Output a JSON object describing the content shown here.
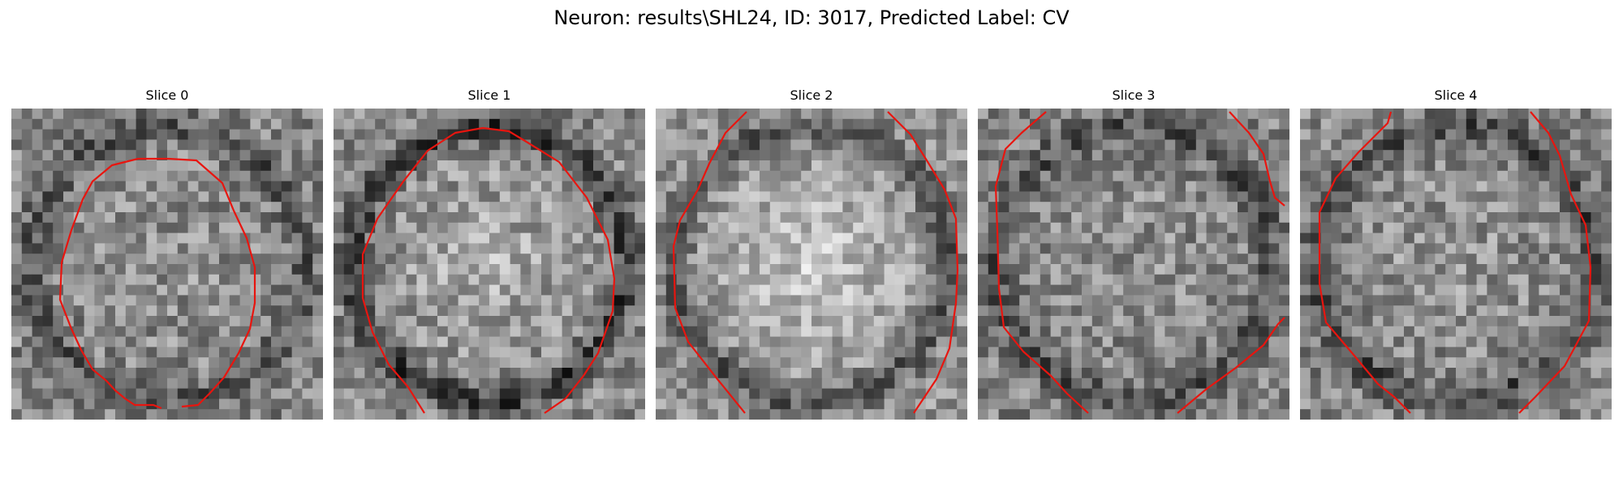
{
  "figure": {
    "title": "Neuron: results\\SHL24, ID: 3017, Predicted Label: CV"
  },
  "panels": [
    {
      "title": "Slice 0",
      "mean_brightness": 0.52,
      "contrast": 0.2,
      "center_brightness": 0.06,
      "dark_ring": 0.18
    },
    {
      "title": "Slice 1",
      "mean_brightness": 0.54,
      "contrast": 0.2,
      "center_brightness": 0.15,
      "dark_ring": 0.3
    },
    {
      "title": "Slice 2",
      "mean_brightness": 0.58,
      "contrast": 0.18,
      "center_brightness": 0.2,
      "dark_ring": 0.24
    },
    {
      "title": "Slice 3",
      "mean_brightness": 0.52,
      "contrast": 0.2,
      "center_brightness": 0.05,
      "dark_ring": 0.2
    },
    {
      "title": "Slice 4",
      "mean_brightness": 0.52,
      "contrast": 0.2,
      "center_brightness": 0.08,
      "dark_ring": 0.22
    }
  ],
  "colors": {
    "contour": "#e8150f",
    "background": "#ffffff"
  },
  "image_grid_size": 30
}
